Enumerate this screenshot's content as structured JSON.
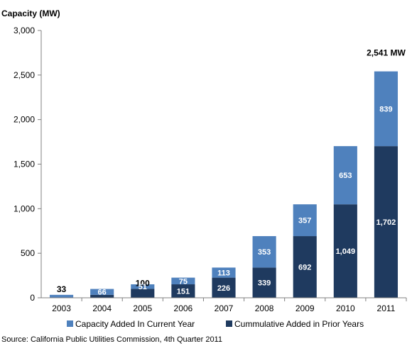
{
  "chart_data": {
    "type": "bar",
    "stacked": true,
    "ylabel": "Capacity (MW)",
    "ylim": [
      0,
      3000
    ],
    "yticks": [
      0,
      500,
      1000,
      1500,
      2000,
      2500,
      3000
    ],
    "ytick_labels": [
      "0",
      "500",
      "1,000",
      "1,500",
      "2,000",
      "2,500",
      "3,000"
    ],
    "categories": [
      "2003",
      "2004",
      "2005",
      "2006",
      "2007",
      "2008",
      "2009",
      "2010",
      "2011"
    ],
    "series": [
      {
        "name": "Cummulative Added in Prior Years",
        "color": "#1f3a5f",
        "values": [
          0,
          33,
          100,
          151,
          226,
          339,
          692,
          1049,
          1702
        ],
        "labels": [
          "",
          "",
          "100",
          "151",
          "226",
          "339",
          "692",
          "1,049",
          "1,702"
        ]
      },
      {
        "name": "Capacity Added In Current Year",
        "color": "#4f81bd",
        "values": [
          33,
          66,
          51,
          75,
          113,
          353,
          357,
          653,
          839
        ],
        "labels": [
          "33",
          "66",
          "51",
          "75",
          "113",
          "353",
          "357",
          "653",
          "839"
        ]
      }
    ],
    "annotations": [
      {
        "category": "2011",
        "text": "2,541 MW"
      }
    ],
    "grid": false,
    "legend_position": "bottom"
  },
  "source": "Source: California Public Utilities Commission, 4th Quarter 2011"
}
